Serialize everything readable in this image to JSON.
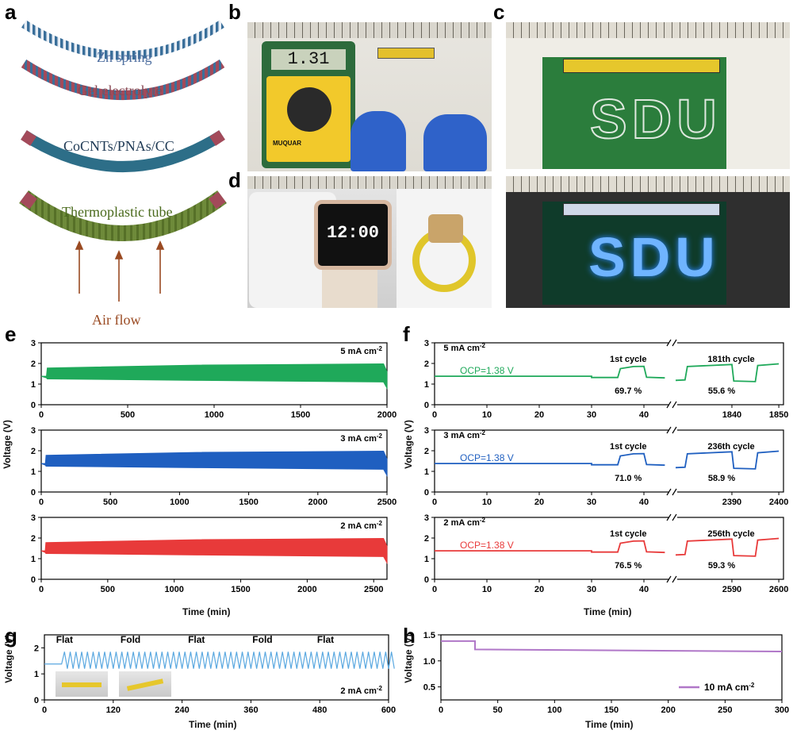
{
  "panel_letters": {
    "a": "a",
    "b": "b",
    "c": "c",
    "d": "d",
    "e": "e",
    "f": "f",
    "g": "g",
    "h": "h"
  },
  "panel_a": {
    "layers": [
      "Zn spring",
      "Gel electrolyte",
      "CoCNTs/PNAs/CC",
      "Thermoplastic tube"
    ],
    "air_flow": "Air flow",
    "colors": {
      "spring": "#3a6f9a",
      "gel": "#a34a5a",
      "cathode": "#2d6e88",
      "tube": "#6e8a3a",
      "arrow": "#9a4a22",
      "label_blue": "#4f6fa0",
      "label_red": "#8a4a55",
      "label_green": "#5a7a2a"
    }
  },
  "panel_b": {
    "meter_reading": "1.31",
    "meter_brand": "MUQUAR"
  },
  "panel_c": {
    "led_text": "SDU"
  },
  "panel_d": {
    "watch_time": "12:00"
  },
  "panel_e": {
    "ylabel": "Voltage (V)",
    "xlabel": "Time (min)",
    "rows": [
      {
        "label": "5 mA cm",
        "sup": "-2",
        "color": "#1fa95a",
        "xmax": 2000,
        "xticks": [
          0,
          500,
          1000,
          1500,
          2000
        ]
      },
      {
        "label": "3 mA cm",
        "sup": "-2",
        "color": "#1f5fc0",
        "xmax": 2500,
        "xticks": [
          0,
          500,
          1000,
          1500,
          2000,
          2500
        ]
      },
      {
        "label": "2 mA cm",
        "sup": "-2",
        "color": "#e83a3a",
        "xmax": 2600,
        "xticks": [
          0,
          500,
          1000,
          1500,
          2000,
          2500
        ]
      }
    ],
    "yticks": [
      0,
      1,
      2,
      3
    ]
  },
  "panel_f": {
    "ylabel": "Voltage (V)",
    "xlabel": "Time (min)",
    "rows": [
      {
        "label": "5 mA cm",
        "sup": "-2",
        "color": "#1fa95a",
        "ocp": "OCP=1.38 V",
        "c1": "1st cycle",
        "c2": "181th cycle",
        "e1": "69.7 %",
        "e2": "55.6 %",
        "ticks_left": [
          0,
          10,
          20,
          30,
          40
        ],
        "ticks_right": [
          1840,
          1850
        ]
      },
      {
        "label": "3 mA cm",
        "sup": "-2",
        "color": "#1f5fc0",
        "ocp": "OCP=1.38 V",
        "c1": "1st cycle",
        "c2": "236th cycle",
        "e1": "71.0 %",
        "e2": "58.9 %",
        "ticks_left": [
          0,
          10,
          20,
          30,
          40
        ],
        "ticks_right": [
          2390,
          2400
        ]
      },
      {
        "label": "2 mA cm",
        "sup": "-2",
        "color": "#e83a3a",
        "ocp": "OCP=1.38 V",
        "c1": "1st cycle",
        "c2": "256th cycle",
        "e1": "76.5 %",
        "e2": "59.3 %",
        "ticks_left": [
          0,
          10,
          20,
          30,
          40
        ],
        "ticks_right": [
          2590,
          2600
        ]
      }
    ],
    "yticks": [
      0,
      1,
      2,
      3
    ]
  },
  "panel_g": {
    "ylabel": "Voltage (V)",
    "xlabel": "Time (min)",
    "states": [
      "Flat",
      "Fold",
      "Flat",
      "Fold",
      "Flat"
    ],
    "current": "2 mA cm",
    "sup": "-2",
    "xticks": [
      0,
      120,
      240,
      360,
      480,
      600
    ],
    "yticks": [
      0,
      1,
      2
    ],
    "color": "#5aa8e0"
  },
  "panel_h": {
    "ylabel": "Voltage (V)",
    "xlabel": "Time (min)",
    "legend": "10 mA cm",
    "sup": "-2",
    "xticks": [
      0,
      50,
      100,
      150,
      200,
      250,
      300
    ],
    "yticks": [
      0.5,
      1.0,
      1.5
    ],
    "color": "#b077c8"
  },
  "chart_data": [
    {
      "type": "line",
      "panel": "e-top",
      "x": [
        0,
        30,
        2000
      ],
      "values": [
        1.38,
        1.6,
        1.6
      ],
      "xlim": [
        0,
        2000
      ],
      "ylim": [
        0,
        3
      ]
    },
    {
      "type": "line",
      "panel": "e-mid",
      "x": [
        0,
        30,
        2500
      ],
      "values": [
        1.38,
        1.6,
        1.6
      ],
      "xlim": [
        0,
        2500
      ],
      "ylim": [
        0,
        3
      ]
    },
    {
      "type": "line",
      "panel": "e-bot",
      "x": [
        0,
        30,
        2600
      ],
      "values": [
        1.38,
        1.6,
        1.6
      ],
      "xlim": [
        0,
        2600
      ],
      "ylim": [
        0,
        3
      ]
    },
    {
      "type": "line",
      "panel": "h",
      "x": [
        0,
        30,
        30,
        300
      ],
      "values": [
        1.38,
        1.38,
        1.22,
        1.18
      ],
      "xlim": [
        0,
        300
      ],
      "ylim": [
        0.25,
        1.5
      ]
    }
  ]
}
